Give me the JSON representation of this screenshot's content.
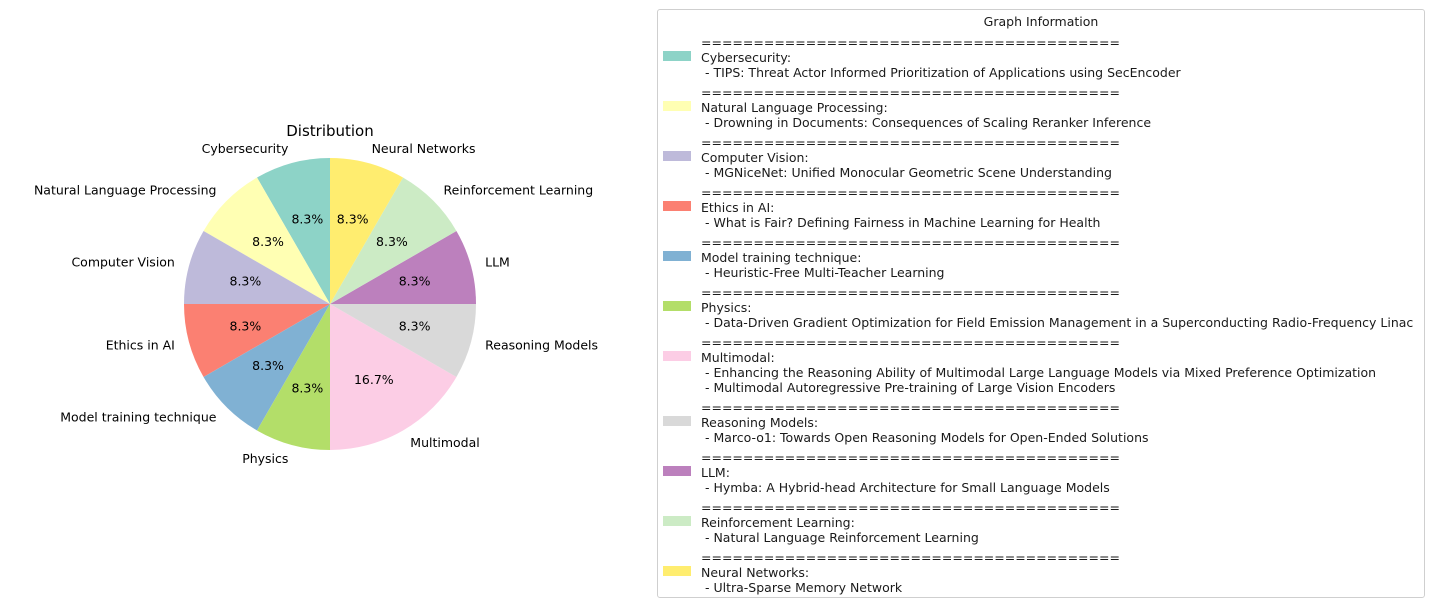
{
  "chart_data": {
    "type": "pie",
    "title": "Distribution",
    "slices": [
      {
        "label": "Cybersecurity",
        "value": 1,
        "pct": "8.3%",
        "color": "#8dd3c7"
      },
      {
        "label": "Natural Language Processing",
        "value": 1,
        "pct": "8.3%",
        "color": "#ffffb3"
      },
      {
        "label": "Computer Vision",
        "value": 1,
        "pct": "8.3%",
        "color": "#bebada"
      },
      {
        "label": "Ethics in AI",
        "value": 1,
        "pct": "8.3%",
        "color": "#fb8072"
      },
      {
        "label": "Model training technique",
        "value": 1,
        "pct": "8.3%",
        "color": "#80b1d3"
      },
      {
        "label": "Physics",
        "value": 1,
        "pct": "8.3%",
        "color": "#b3de69"
      },
      {
        "label": "Multimodal",
        "value": 2,
        "pct": "16.7%",
        "color": "#fccde5"
      },
      {
        "label": "Reasoning Models",
        "value": 1,
        "pct": "8.3%",
        "color": "#d9d9d9"
      },
      {
        "label": "LLM",
        "value": 1,
        "pct": "8.3%",
        "color": "#bc80bd"
      },
      {
        "label": "Reinforcement Learning",
        "value": 1,
        "pct": "8.3%",
        "color": "#ccebc5"
      },
      {
        "label": "Neural Networks",
        "value": 1,
        "pct": "8.3%",
        "color": "#ffed6f"
      }
    ],
    "start_angle_deg": 90,
    "direction": "counterclockwise"
  },
  "legend": {
    "title": "Graph Information",
    "separator": "========================================",
    "entries": [
      {
        "category": "Cybersecurity:",
        "color": "#8dd3c7",
        "items": [
          "- TIPS: Threat Actor Informed Prioritization of Applications using SecEncoder"
        ]
      },
      {
        "category": "Natural Language Processing:",
        "color": "#ffffb3",
        "items": [
          "- Drowning in Documents: Consequences of Scaling Reranker Inference"
        ]
      },
      {
        "category": "Computer Vision:",
        "color": "#bebada",
        "items": [
          "- MGNiceNet: Unified Monocular Geometric Scene Understanding"
        ]
      },
      {
        "category": "Ethics in AI:",
        "color": "#fb8072",
        "items": [
          "- What is Fair? Defining Fairness in Machine Learning for Health"
        ]
      },
      {
        "category": "Model training technique:",
        "color": "#80b1d3",
        "items": [
          "- Heuristic-Free Multi-Teacher Learning"
        ]
      },
      {
        "category": "Physics:",
        "color": "#b3de69",
        "items": [
          "- Data-Driven Gradient Optimization for Field Emission Management in a Superconducting Radio-Frequency Linac"
        ]
      },
      {
        "category": "Multimodal:",
        "color": "#fccde5",
        "items": [
          "- Enhancing the Reasoning Ability of Multimodal Large Language Models via Mixed Preference Optimization",
          "- Multimodal Autoregressive Pre-training of Large Vision Encoders"
        ]
      },
      {
        "category": "Reasoning Models:",
        "color": "#d9d9d9",
        "items": [
          "- Marco-o1: Towards Open Reasoning Models for Open-Ended Solutions"
        ]
      },
      {
        "category": "LLM:",
        "color": "#bc80bd",
        "items": [
          "- Hymba: A Hybrid-head Architecture for Small Language Models"
        ]
      },
      {
        "category": "Reinforcement Learning:",
        "color": "#ccebc5",
        "items": [
          "- Natural Language Reinforcement Learning"
        ]
      },
      {
        "category": "Neural Networks:",
        "color": "#ffed6f",
        "items": [
          "- Ultra-Sparse Memory Network"
        ]
      }
    ]
  }
}
